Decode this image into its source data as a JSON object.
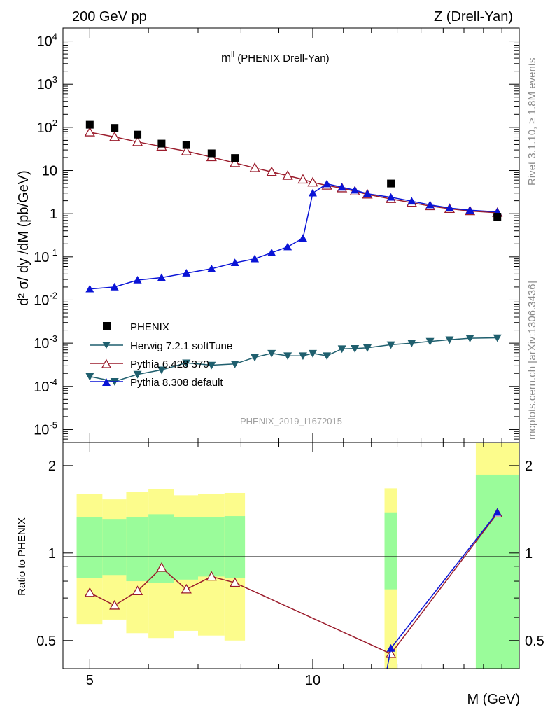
{
  "header": {
    "left": "200 GeV pp",
    "right": "Z (Drell-Yan)"
  },
  "plot_title": "m^ll (PHENIX Drell-Yan)",
  "plot_title_main": "m",
  "plot_title_sup": "ll",
  "plot_title_rest": " (PHENIX Drell-Yan)",
  "watermark": "PHENIX_2019_I1672015",
  "side_text": {
    "rivet": "Rivet 3.1.10, ≥ 1.8M events",
    "mcplots": "mcplots.cern.ch [arXiv:1306.3436]"
  },
  "colors": {
    "data": "#000000",
    "herwig": "#1f5f6e",
    "pythia6": "#9b1c2c",
    "pythia8": "#0a14d6",
    "band_inner": "#9afc9a",
    "band_outer": "#fcfc8c"
  },
  "chart_data": [
    {
      "type": "scatter",
      "panel": "main",
      "ylabel": "d² σ/ dy /dM (pb/GeV)",
      "xlabel": "",
      "xscale": "log",
      "yscale": "log",
      "xlim": [
        4.6,
        19.0
      ],
      "ylim": [
        5e-06,
        20000
      ],
      "y_ticks": [
        "10^-5",
        "10^-4",
        "10^-3",
        "10^-2",
        "10^-1",
        "1",
        "10",
        "10^2",
        "10^3",
        "10^4"
      ],
      "legend_position": "center-left",
      "series": [
        {
          "name": "PHENIX",
          "marker": "square",
          "x": [
            5.0,
            5.4,
            5.8,
            6.25,
            6.75,
            7.3,
            7.85,
            12.75,
            17.75
          ],
          "y": [
            115,
            97,
            68,
            42,
            39,
            25,
            19.5,
            5.0,
            0.85
          ]
        },
        {
          "name": "Herwig 7.2.1 softTune",
          "marker": "triangle-down",
          "x": [
            5.0,
            5.4,
            5.8,
            6.25,
            6.75,
            7.3,
            7.85,
            8.35,
            8.8,
            9.25,
            9.7,
            10.0,
            10.45,
            10.95,
            11.4,
            11.85,
            12.75,
            13.6,
            14.4,
            15.3,
            16.3,
            17.75
          ],
          "y": [
            0.00017,
            0.00013,
            0.00019,
            0.00024,
            0.00035,
            0.00031,
            0.00033,
            0.00047,
            0.00058,
            0.00051,
            0.00051,
            0.00058,
            0.00051,
            0.00074,
            0.00075,
            0.00078,
            0.00092,
            0.001,
            0.0011,
            0.0012,
            0.0013,
            0.00133
          ]
        },
        {
          "name": "Pythia 6.428 370",
          "marker": "triangle-up-open",
          "x": [
            5.0,
            5.4,
            5.8,
            6.25,
            6.75,
            7.3,
            7.85,
            8.35,
            8.8,
            9.25,
            9.7,
            10.0,
            10.45,
            10.95,
            11.4,
            11.85,
            12.75,
            13.6,
            14.4,
            15.3,
            16.3,
            17.75
          ],
          "y": [
            77,
            60,
            46,
            36,
            28,
            20.5,
            15,
            11.5,
            9.3,
            7.6,
            6.2,
            5.3,
            4.5,
            3.9,
            3.3,
            2.8,
            2.2,
            1.8,
            1.5,
            1.3,
            1.15,
            1.05
          ]
        },
        {
          "name": "Pythia 8.308 default",
          "marker": "triangle-up",
          "x": [
            5.0,
            5.4,
            5.8,
            6.25,
            6.75,
            7.3,
            7.85,
            8.35,
            8.8,
            9.25,
            9.7,
            10.0,
            10.45,
            10.95,
            11.4,
            11.85,
            12.75,
            13.6,
            14.4,
            15.3,
            16.3,
            17.75
          ],
          "y": [
            0.018,
            0.02,
            0.029,
            0.033,
            0.042,
            0.053,
            0.073,
            0.09,
            0.125,
            0.17,
            0.27,
            3.0,
            4.9,
            4.1,
            3.5,
            2.9,
            2.4,
            1.95,
            1.6,
            1.35,
            1.2,
            1.1
          ]
        }
      ]
    },
    {
      "type": "line",
      "panel": "ratio",
      "ylabel": "Ratio to PHENIX",
      "xlabel": "M (GeV)",
      "xscale": "log",
      "yscale": "log",
      "xlim": [
        4.6,
        19.0
      ],
      "ylim": [
        0.4,
        2.4
      ],
      "x_ticks": [
        "5",
        "10"
      ],
      "y_ticks": [
        "0.5",
        "1",
        "2"
      ],
      "bands": [
        {
          "xlo": 4.8,
          "xhi": 5.2,
          "inner": [
            0.82,
            1.33
          ],
          "outer": [
            0.57,
            1.6
          ]
        },
        {
          "xlo": 5.2,
          "xhi": 5.6,
          "inner": [
            0.84,
            1.31
          ],
          "outer": [
            0.59,
            1.53
          ]
        },
        {
          "xlo": 5.6,
          "xhi": 6.0,
          "inner": [
            0.8,
            1.33
          ],
          "outer": [
            0.53,
            1.62
          ]
        },
        {
          "xlo": 6.0,
          "xhi": 6.5,
          "inner": [
            0.79,
            1.36
          ],
          "outer": [
            0.51,
            1.66
          ]
        },
        {
          "xlo": 6.5,
          "xhi": 7.0,
          "inner": [
            0.81,
            1.33
          ],
          "outer": [
            0.54,
            1.58
          ]
        },
        {
          "xlo": 7.0,
          "xhi": 7.6,
          "inner": [
            0.83,
            1.33
          ],
          "outer": [
            0.52,
            1.6
          ]
        },
        {
          "xlo": 7.6,
          "xhi": 8.1,
          "inner": [
            0.82,
            1.34
          ],
          "outer": [
            0.5,
            1.61
          ]
        },
        {
          "xlo": 12.5,
          "xhi": 13.0,
          "inner": [
            0.75,
            1.38
          ],
          "outer": [
            0.4,
            1.67
          ]
        },
        {
          "xlo": 16.6,
          "xhi": 19.0,
          "inner": [
            0.4,
            1.86
          ],
          "outer": [
            0.4,
            2.4
          ]
        }
      ],
      "series": [
        {
          "name": "Pythia 6.428 370",
          "x": [
            5.0,
            5.4,
            5.8,
            6.25,
            6.75,
            7.3,
            7.85,
            12.75,
            17.75
          ],
          "y": [
            0.73,
            0.66,
            0.74,
            0.89,
            0.75,
            0.83,
            0.79,
            0.45,
            1.37
          ]
        },
        {
          "name": "Pythia 8.308 default",
          "x": [
            12.6,
            12.75,
            17.75
          ],
          "y": [
            0.4,
            0.47,
            1.38
          ]
        }
      ]
    }
  ]
}
